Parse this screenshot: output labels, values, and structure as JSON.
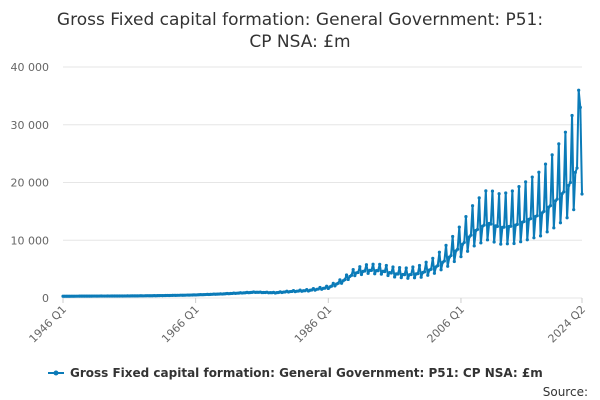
{
  "chart_data": {
    "type": "line",
    "title_lines": [
      "Gross Fixed capital formation: General Government: P51:",
      "CP NSA: £m"
    ],
    "xlabel": "",
    "ylabel": "",
    "ylim": [
      0,
      40000
    ],
    "y_ticks": [
      0,
      10000,
      20000,
      30000,
      40000
    ],
    "y_tick_labels": [
      "0",
      "10 000",
      "20 000",
      "30 000",
      "40 000"
    ],
    "x_tick_labels": [
      "1946 Q1",
      "1966 Q1",
      "1986 Q1",
      "2006 Q1",
      "2024 Q2"
    ],
    "x_tick_years": [
      1946.0,
      1966.0,
      1986.0,
      2006.0,
      2024.25
    ],
    "x_range": [
      1946.0,
      2024.25
    ],
    "grid": true,
    "series_color": "#0b7bb8",
    "series": [
      {
        "name": "Gross Fixed capital formation: General Government: P51: CP NSA: £m",
        "start": "1946 Q1",
        "frequency": "quarterly",
        "points": [
          [
            1946.0,
            300
          ],
          [
            1950.0,
            330
          ],
          [
            1955.0,
            350
          ],
          [
            1960.0,
            400
          ],
          [
            1965.0,
            500
          ],
          [
            1970.0,
            700
          ],
          [
            1975.0,
            1000
          ],
          [
            1978.0,
            900
          ],
          [
            1980.0,
            1100
          ],
          [
            1983.0,
            1300
          ],
          [
            1986.0,
            1800
          ],
          [
            1988.0,
            2800
          ],
          [
            1990.0,
            4300
          ],
          [
            1992.0,
            4800
          ],
          [
            1994.0,
            4700
          ],
          [
            1996.0,
            4200
          ],
          [
            1998.0,
            4000
          ],
          [
            2000.0,
            4300
          ],
          [
            2002.0,
            5200
          ],
          [
            2004.0,
            6800
          ],
          [
            2006.0,
            9000
          ],
          [
            2008.0,
            11500
          ],
          [
            2010.0,
            13000
          ],
          [
            2012.0,
            12200
          ],
          [
            2014.0,
            12500
          ],
          [
            2016.0,
            13500
          ],
          [
            2018.0,
            14500
          ],
          [
            2020.0,
            16500
          ],
          [
            2022.0,
            19000
          ],
          [
            2023.0,
            21000
          ],
          [
            2024.0,
            24000
          ],
          [
            2024.25,
            18000
          ]
        ],
        "q4_spike_multiplier": [
          [
            1946.0,
            1.0
          ],
          [
            1975.0,
            1.05
          ],
          [
            1985.0,
            1.15
          ],
          [
            1995.0,
            1.25
          ],
          [
            2005.0,
            1.4
          ],
          [
            2015.0,
            1.5
          ],
          [
            2024.25,
            1.55
          ]
        ]
      }
    ],
    "legend_position": "bottom-center"
  },
  "legend": {
    "label": "Gross Fixed capital formation: General Government: P51: CP NSA: £m"
  },
  "footer": {
    "source_label": "Source:"
  }
}
